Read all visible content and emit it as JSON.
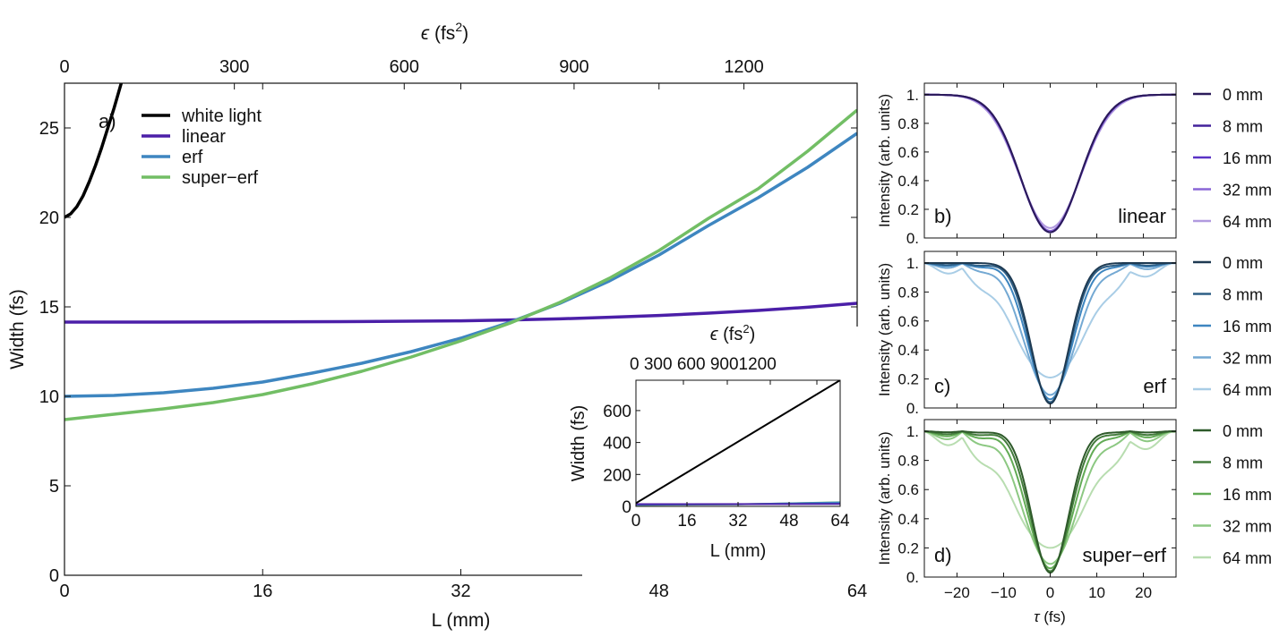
{
  "chart_data": [
    {
      "id": "a",
      "type": "line",
      "panel_label": "a)",
      "xlabel": "L (mm)",
      "ylabel": "Width (fs)",
      "top_xlabel_symbol": "ϵ",
      "top_xlabel_rest": " (fs",
      "top_xlabel_sup": "2",
      "top_xlabel_end": ")",
      "xlim": [
        0,
        64
      ],
      "ylim": [
        0,
        27.5
      ],
      "xticks": [
        "0",
        "16",
        "32",
        "48",
        "64"
      ],
      "yticks": [
        "0",
        "5",
        "10",
        "15",
        "20",
        "25"
      ],
      "top_xlim": [
        0,
        1400
      ],
      "top_xticks": [
        "0",
        "300",
        "600",
        "900",
        "1200"
      ],
      "legend": [
        "white light",
        "linear",
        "erf",
        "super−erf"
      ],
      "series": [
        {
          "name": "white light",
          "color": "#000000",
          "x": [
            0,
            0.5,
            1,
            1.5,
            2,
            2.5,
            3,
            3.5,
            4,
            4.5,
            5
          ],
          "y": [
            20.0,
            20.2,
            20.6,
            21.2,
            22.0,
            22.9,
            23.9,
            25.0,
            26.1,
            27.3,
            28.5
          ]
        },
        {
          "name": "linear",
          "color": "#4B1FA8",
          "x": [
            0,
            8,
            16,
            24,
            32,
            36,
            40,
            44,
            48,
            52,
            56,
            60,
            64
          ],
          "y": [
            14.15,
            14.15,
            14.16,
            14.18,
            14.22,
            14.27,
            14.33,
            14.42,
            14.52,
            14.65,
            14.8,
            14.98,
            15.2
          ]
        },
        {
          "name": "erf",
          "color": "#3E86C0",
          "x": [
            0,
            4,
            8,
            12,
            16,
            20,
            24,
            28,
            32,
            36,
            40,
            44,
            48,
            52,
            56,
            60,
            64
          ],
          "y": [
            10.0,
            10.05,
            10.2,
            10.45,
            10.8,
            11.3,
            11.85,
            12.5,
            13.25,
            14.15,
            15.2,
            16.45,
            17.9,
            19.55,
            21.1,
            22.8,
            24.7
          ]
        },
        {
          "name": "super−erf",
          "color": "#72BE65",
          "x": [
            0,
            4,
            8,
            12,
            16,
            20,
            24,
            28,
            32,
            36,
            40,
            44,
            48,
            52,
            56,
            60,
            64
          ],
          "y": [
            8.7,
            9.0,
            9.3,
            9.65,
            10.1,
            10.7,
            11.4,
            12.2,
            13.1,
            14.1,
            15.25,
            16.6,
            18.15,
            19.95,
            21.6,
            23.7,
            26.0
          ]
        }
      ],
      "inset": {
        "xlabel": "L (mm)",
        "ylabel": "Width (fs)",
        "top_xlabel_symbol": "ϵ",
        "top_xlabel_rest": " (fs",
        "top_xlabel_sup": "2",
        "top_xlabel_end": ")",
        "xlim": [
          0,
          64
        ],
        "ylim": [
          0,
          790
        ],
        "xticks": [
          "0",
          "16",
          "32",
          "48",
          "64"
        ],
        "yticks": [
          "0",
          "200",
          "400",
          "600"
        ],
        "top_xticks": [
          "0",
          "300",
          "600",
          "900",
          "1200"
        ],
        "series": [
          {
            "name": "white light",
            "color": "#000000",
            "x": [
              0,
              64
            ],
            "y": [
              20,
              790
            ]
          },
          {
            "name": "linear",
            "color": "#4B1FA8",
            "x": [
              0,
              64
            ],
            "y": [
              14.2,
              15.2
            ]
          },
          {
            "name": "erf",
            "color": "#3E86C0",
            "x": [
              0,
              32,
              64
            ],
            "y": [
              10,
              13.3,
              24.7
            ]
          },
          {
            "name": "super−erf",
            "color": "#72BE65",
            "x": [
              0,
              32,
              64
            ],
            "y": [
              8.7,
              13.1,
              26
            ]
          }
        ]
      }
    },
    {
      "id": "b",
      "type": "line",
      "panel_label": "b)",
      "name_label": "linear",
      "ylabel": "Intensity (arb. units)",
      "ylim": [
        0,
        1.08
      ],
      "yticks": [
        "0.",
        "0.2",
        "0.4",
        "0.6",
        "0.8",
        "1."
      ],
      "xlim": [
        -27,
        27
      ],
      "legend": [
        "0 mm",
        "8 mm",
        "16 mm",
        "32 mm",
        "64 mm"
      ],
      "legend_colors": [
        "#2B1B5A",
        "#44229B",
        "#5A33C6",
        "#8A66D6",
        "#B19ADF"
      ],
      "series": [
        {
          "name": "0 mm",
          "color": "#2B1B5A",
          "depth": 0.04,
          "width": 6.3
        },
        {
          "name": "8 mm",
          "color": "#44229B",
          "depth": 0.04,
          "width": 6.3
        },
        {
          "name": "16 mm",
          "color": "#5A33C6",
          "depth": 0.04,
          "width": 6.35
        },
        {
          "name": "32 mm",
          "color": "#8A66D6",
          "depth": 0.05,
          "width": 6.4
        },
        {
          "name": "64 mm",
          "color": "#B19ADF",
          "depth": 0.07,
          "width": 6.6
        }
      ]
    },
    {
      "id": "c",
      "type": "line",
      "panel_label": "c)",
      "name_label": "erf",
      "ylabel": "Intensity (arb. units)",
      "ylim": [
        0,
        1.08
      ],
      "yticks": [
        "0.",
        "0.2",
        "0.4",
        "0.6",
        "0.8",
        "1."
      ],
      "xlim": [
        -27,
        27
      ],
      "legend": [
        "0 mm",
        "8 mm",
        "16 mm",
        "32 mm",
        "64 mm"
      ],
      "legend_colors": [
        "#1E3A52",
        "#2E5F86",
        "#3E86C0",
        "#74A9D3",
        "#A9CDE6"
      ],
      "series": [
        {
          "name": "0 mm",
          "color": "#1E3A52",
          "depth": 0.03,
          "width": 4.0,
          "ripple": 0.0
        },
        {
          "name": "8 mm",
          "color": "#2E5F86",
          "depth": 0.04,
          "width": 4.2,
          "ripple": 0.02
        },
        {
          "name": "16 mm",
          "color": "#3E86C0",
          "depth": 0.06,
          "width": 4.6,
          "ripple": 0.03
        },
        {
          "name": "32 mm",
          "color": "#74A9D3",
          "depth": 0.09,
          "width": 5.4,
          "ripple": 0.05
        },
        {
          "name": "64 mm",
          "color": "#A9CDE6",
          "depth": 0.21,
          "width": 7.6,
          "ripple": 0.09
        }
      ]
    },
    {
      "id": "d",
      "type": "line",
      "panel_label": "d)",
      "name_label": "super−erf",
      "ylabel": "Intensity (arb. units)",
      "ylim": [
        0,
        1.08
      ],
      "yticks": [
        "0.",
        "0.2",
        "0.4",
        "0.6",
        "0.8",
        "1."
      ],
      "xlim": [
        -27,
        27
      ],
      "xlabel_symbol": "τ",
      "xlabel_rest": " (fs)",
      "xticks": [
        "−20",
        "−10",
        "0",
        "10",
        "20"
      ],
      "xtick_values": [
        -20,
        -10,
        0,
        10,
        20
      ],
      "legend": [
        "0 mm",
        "8 mm",
        "16 mm",
        "32 mm",
        "64 mm"
      ],
      "legend_colors": [
        "#2E5A2A",
        "#447C3D",
        "#62AB55",
        "#8CC882",
        "#B8DDB0"
      ],
      "series": [
        {
          "name": "0 mm",
          "color": "#2E5A2A",
          "depth": 0.03,
          "width": 3.9,
          "ripple": 0.01
        },
        {
          "name": "8 mm",
          "color": "#447C3D",
          "depth": 0.04,
          "width": 4.2,
          "ripple": 0.03
        },
        {
          "name": "16 mm",
          "color": "#62AB55",
          "depth": 0.06,
          "width": 4.7,
          "ripple": 0.05
        },
        {
          "name": "32 mm",
          "color": "#8CC882",
          "depth": 0.09,
          "width": 5.6,
          "ripple": 0.08
        },
        {
          "name": "64 mm",
          "color": "#B8DDB0",
          "depth": 0.2,
          "width": 7.8,
          "ripple": 0.12
        }
      ]
    }
  ]
}
